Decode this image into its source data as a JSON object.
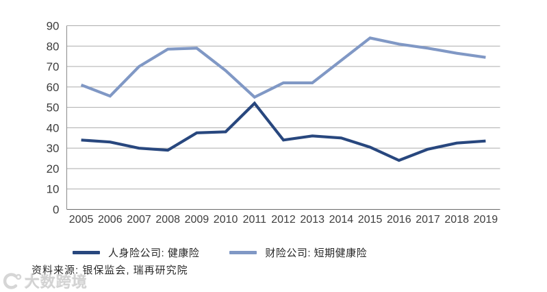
{
  "chart_data": {
    "type": "line",
    "categories": [
      "2005",
      "2006",
      "2007",
      "2008",
      "2009",
      "2010",
      "2011",
      "2012",
      "2013",
      "2014",
      "2015",
      "2016",
      "2017",
      "2018",
      "2019"
    ],
    "series": [
      {
        "name": "人身险公司: 健康险",
        "color": "#28477e",
        "values": [
          34,
          33,
          30,
          29,
          37.5,
          38,
          52,
          34,
          36,
          35,
          30.5,
          24,
          29.5,
          32.5,
          33.5
        ]
      },
      {
        "name": "财险公司: 短期健康险",
        "color": "#8098c5",
        "values": [
          61,
          55.5,
          70,
          78.5,
          79,
          68,
          55,
          62,
          62,
          73,
          84,
          81,
          79,
          76.5,
          74.5
        ]
      }
    ],
    "title": "",
    "xlabel": "",
    "ylabel": "",
    "ylim": [
      0,
      90
    ],
    "yticks": [
      0,
      10,
      20,
      30,
      40,
      50,
      60,
      70,
      80,
      90
    ],
    "grid": true,
    "legend_position": "bottom"
  },
  "colors": {
    "grid_line": "#ababab",
    "axis_line": "#8a8a8a",
    "zero_axis_line": "#6b6b6b",
    "tick_text": "#3d3d3d",
    "background": "#ffffff"
  },
  "source_note": "资料来源: 银保监会, 瑞再研究院",
  "watermark": {
    "text": "大数跨境"
  }
}
